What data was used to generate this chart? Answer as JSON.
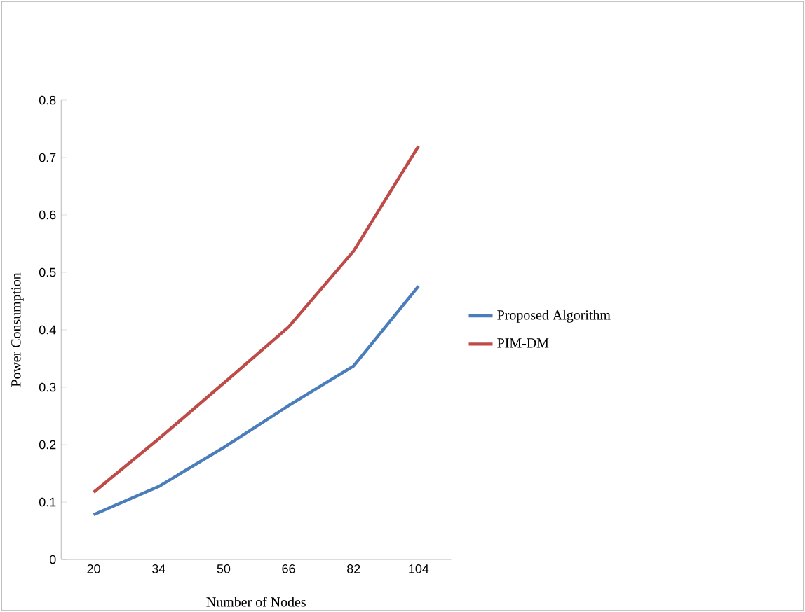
{
  "chart_data": {
    "type": "line",
    "xlabel": "Number of Nodes",
    "ylabel": "Power Consumption",
    "categories": [
      "20",
      "34",
      "50",
      "66",
      "82",
      "104"
    ],
    "series": [
      {
        "name": "Proposed Algorithm",
        "color": "#4a7ebb",
        "values": [
          0.078,
          0.127,
          0.195,
          0.268,
          0.337,
          0.476
        ]
      },
      {
        "name": "PIM-DM",
        "color": "#be4b48",
        "values": [
          0.117,
          0.21,
          0.307,
          0.405,
          0.537,
          0.72
        ]
      }
    ],
    "ylim": [
      0,
      0.8
    ],
    "yticks": [
      0,
      0.1,
      0.2,
      0.3,
      0.4,
      0.5,
      0.6,
      0.7,
      0.8
    ],
    "legend": "right",
    "marker": "none",
    "line_style": "solid"
  }
}
